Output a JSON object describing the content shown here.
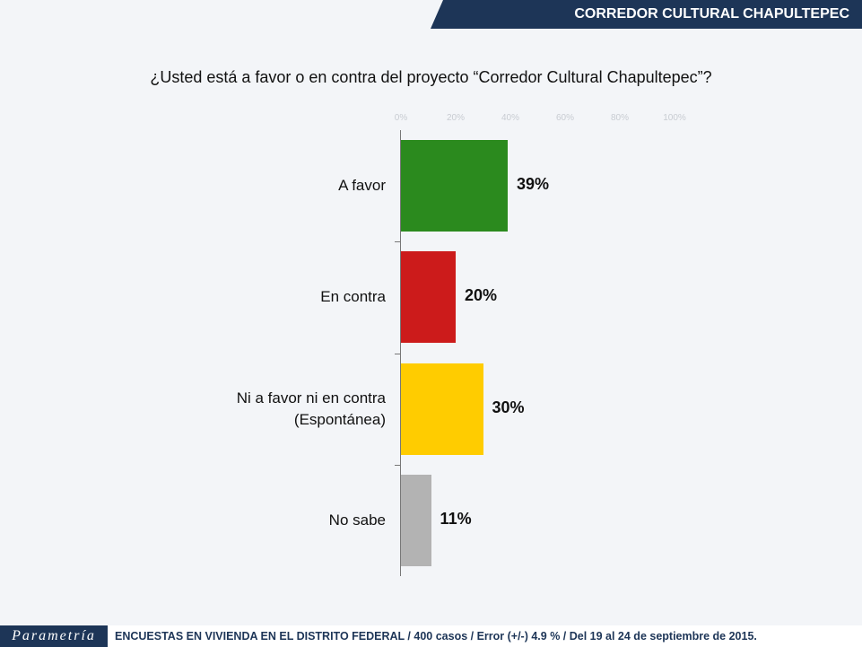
{
  "header": {
    "title": "CORREDOR CULTURAL CHAPULTEPEC"
  },
  "chart_data": {
    "type": "bar",
    "orientation": "horizontal",
    "title": "¿Usted está a favor o en contra del proyecto “Corredor Cultural Chapultepec”?",
    "categories": [
      "A favor",
      "En contra",
      "Ni a favor ni en contra (Espontánea)",
      "No sabe"
    ],
    "values": [
      39,
      20,
      30,
      11
    ],
    "value_labels": [
      "39%",
      "20%",
      "30%",
      "11%"
    ],
    "colors": [
      "#2b8a1e",
      "#cc1b1b",
      "#ffcc00",
      "#b3b3b3"
    ],
    "xlim": [
      0,
      100
    ],
    "xticks": [
      {
        "value": 0,
        "label": "0%"
      },
      {
        "value": 20,
        "label": "20%"
      },
      {
        "value": 40,
        "label": "40%"
      },
      {
        "value": 60,
        "label": "60%"
      },
      {
        "value": 80,
        "label": "80%"
      },
      {
        "value": 100,
        "label": "100%"
      }
    ]
  },
  "footer": {
    "logo": "Parametría",
    "note": "ENCUESTAS EN VIVIENDA EN EL DISTRITO FEDERAL / 400 casos / Error (+/-) 4.9 % / Del 19 al 24 de septiembre de 2015."
  }
}
